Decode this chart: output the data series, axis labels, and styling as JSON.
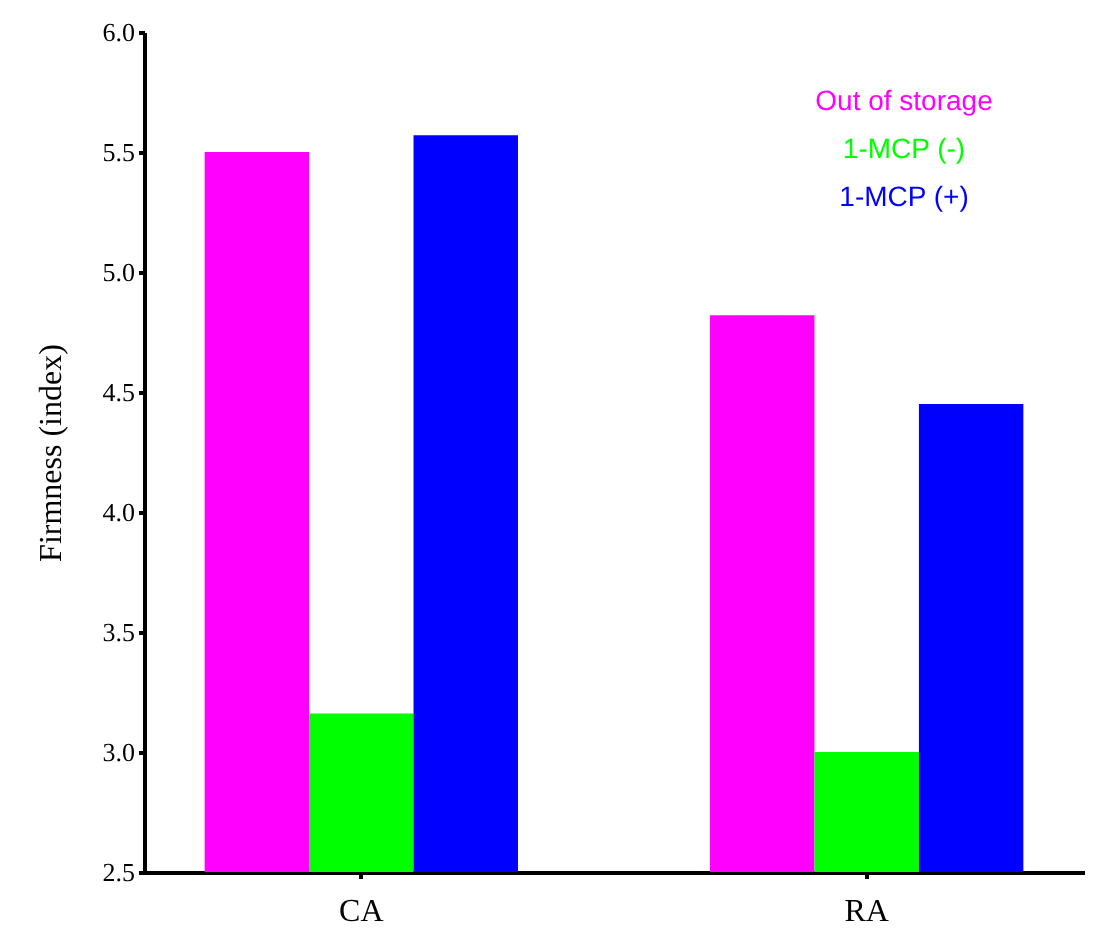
{
  "chart_data": {
    "type": "bar",
    "ylabel": "Firmness (index)",
    "categories": [
      "CA",
      "RA"
    ],
    "series": [
      {
        "name": "Out of storage",
        "color": "#ff00ff",
        "values": [
          5.5,
          4.82
        ]
      },
      {
        "name": "1-MCP (-)",
        "color": "#00ff00",
        "values": [
          3.16,
          3.0
        ]
      },
      {
        "name": "1-MCP (+)",
        "color": "#0000ff",
        "values": [
          5.57,
          4.45
        ]
      }
    ],
    "ylim": [
      2.5,
      6.0
    ],
    "yticks": [
      {
        "value": 2.5,
        "label": "2.5"
      },
      {
        "value": 3,
        "label": "3.0"
      },
      {
        "value": 3.5,
        "label": "3.5"
      },
      {
        "value": 4,
        "label": "4.0"
      },
      {
        "value": 4.5,
        "label": "4.5"
      },
      {
        "value": 5,
        "label": "5.0"
      },
      {
        "value": 5.5,
        "label": "5.5"
      },
      {
        "value": 6,
        "label": "6.0"
      }
    ],
    "grid": false,
    "legend": "top right"
  }
}
